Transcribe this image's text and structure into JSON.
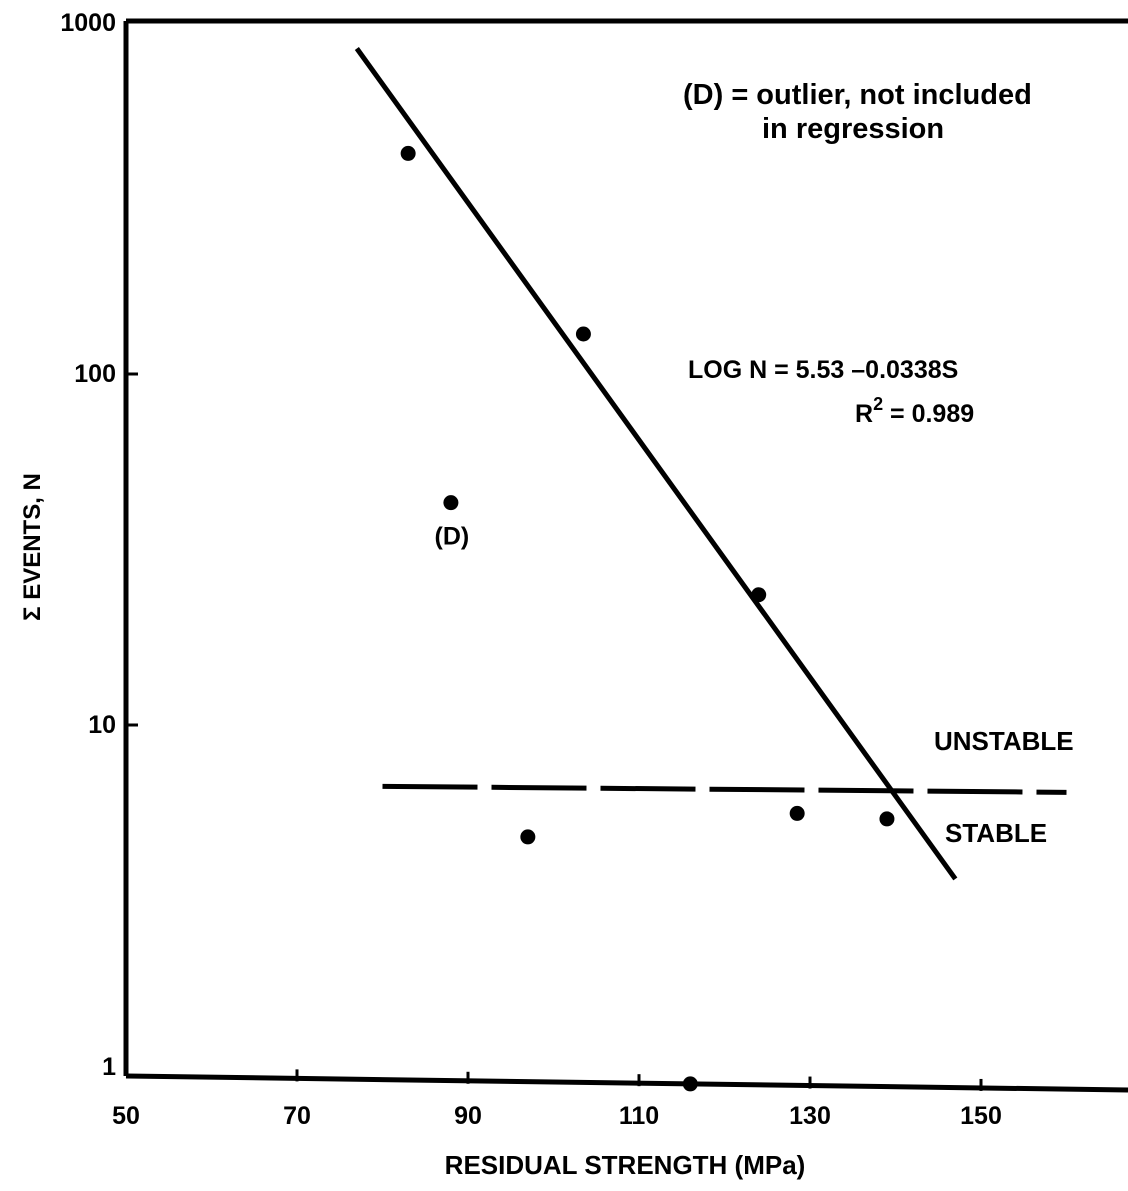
{
  "chart_data": {
    "type": "scatter",
    "xlabel": "RESIDUAL STRENGTH (MPa)",
    "ylabel": "Σ EVENTS, N",
    "x_scale": "linear",
    "y_scale": "log",
    "xlim": [
      50,
      175
    ],
    "ylim": [
      1,
      1000
    ],
    "x_ticks": [
      "50",
      "70",
      "90",
      "110",
      "130",
      "150"
    ],
    "y_ticks": [
      "1",
      "10",
      "100",
      "1000"
    ],
    "points": [
      {
        "x": 83,
        "y": 425
      },
      {
        "x": 103.5,
        "y": 130
      },
      {
        "x": 124,
        "y": 23.5
      },
      {
        "x": 88,
        "y": 43,
        "label": "(D)"
      },
      {
        "x": 97,
        "y": 4.8
      },
      {
        "x": 128.5,
        "y": 5.6
      },
      {
        "x": 139,
        "y": 5.4
      },
      {
        "x": 116,
        "y": 0.9
      }
    ],
    "regression_line": {
      "x_start": 77,
      "x_end": 147,
      "intercept": 5.53,
      "slope": -0.0338
    },
    "threshold": {
      "y": 6.6,
      "x_start": 80,
      "x_end": 160,
      "style": "dashed"
    },
    "annotations": {
      "outlier_note_line1": "(D) = outlier, not included",
      "outlier_note_line2": "in regression",
      "equation": "LOG N = 5.53 –0.0338S",
      "r2_prefix": "R",
      "r2_exp": "2",
      "r2_value": " = 0.989",
      "unstable": "UNSTABLE",
      "stable": "STABLE"
    }
  }
}
